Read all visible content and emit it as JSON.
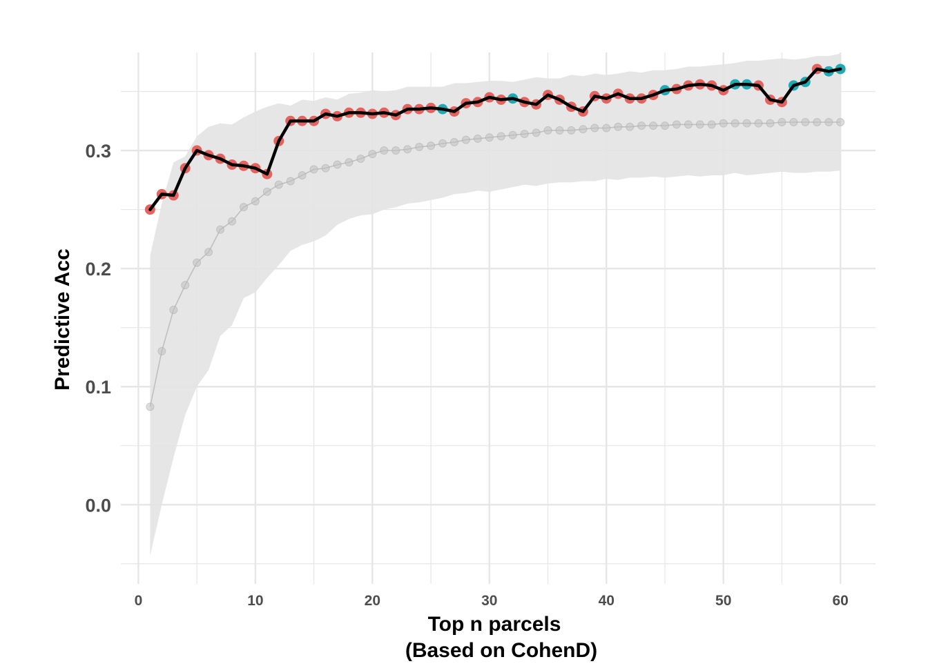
{
  "chart_data": {
    "type": "line",
    "title": "",
    "xlabel_lines": [
      "Top n parcels",
      "(Based on CohenD)"
    ],
    "ylabel": "Predictive Acc",
    "xlim": [
      -1.5,
      63
    ],
    "ylim": [
      -0.067,
      0.383
    ],
    "x_ticks": [
      0,
      10,
      20,
      30,
      40,
      50,
      60
    ],
    "y_ticks": [
      0.0,
      0.1,
      0.2,
      0.3
    ],
    "y_tick_labels": [
      "0.0",
      "0.1",
      "0.2",
      "0.3"
    ],
    "grid": true,
    "legend": "none",
    "colors": {
      "main_line": "#000000",
      "point_red": "#E5635E",
      "point_teal": "#21AAB3",
      "null_mean": "#bfbfbf",
      "ribbon": "#e3e3e3",
      "grid": "#e6e6e6",
      "tick_text": "#4d4d4d"
    },
    "x": [
      1,
      2,
      3,
      4,
      5,
      6,
      7,
      8,
      9,
      10,
      11,
      12,
      13,
      14,
      15,
      16,
      17,
      18,
      19,
      20,
      21,
      22,
      23,
      24,
      25,
      26,
      27,
      28,
      29,
      30,
      31,
      32,
      33,
      34,
      35,
      36,
      37,
      38,
      39,
      40,
      41,
      42,
      43,
      44,
      45,
      46,
      47,
      48,
      49,
      50,
      51,
      52,
      53,
      54,
      55,
      56,
      57,
      58,
      59,
      60
    ],
    "observed": [
      0.25,
      0.263,
      0.262,
      0.285,
      0.3,
      0.296,
      0.293,
      0.288,
      0.287,
      0.285,
      0.28,
      0.308,
      0.325,
      0.325,
      0.325,
      0.331,
      0.329,
      0.332,
      0.332,
      0.331,
      0.332,
      0.33,
      0.335,
      0.335,
      0.336,
      0.335,
      0.333,
      0.34,
      0.341,
      0.345,
      0.343,
      0.344,
      0.341,
      0.339,
      0.347,
      0.343,
      0.337,
      0.333,
      0.346,
      0.344,
      0.348,
      0.344,
      0.344,
      0.347,
      0.351,
      0.352,
      0.355,
      0.356,
      0.355,
      0.351,
      0.356,
      0.356,
      0.355,
      0.343,
      0.341,
      0.355,
      0.358,
      0.369,
      0.367,
      0.369
    ],
    "point_group": [
      "r",
      "r",
      "r",
      "r",
      "r",
      "r",
      "r",
      "r",
      "r",
      "r",
      "r",
      "r",
      "r",
      "r",
      "r",
      "r",
      "r",
      "r",
      "r",
      "r",
      "r",
      "r",
      "r",
      "r",
      "r",
      "t",
      "r",
      "r",
      "r",
      "r",
      "r",
      "t",
      "r",
      "r",
      "r",
      "r",
      "r",
      "r",
      "r",
      "r",
      "r",
      "r",
      "r",
      "r",
      "t",
      "r",
      "r",
      "r",
      "r",
      "r",
      "t",
      "t",
      "r",
      "r",
      "r",
      "t",
      "t",
      "r",
      "t",
      "t"
    ],
    "null_mean": [
      0.083,
      0.13,
      0.165,
      0.186,
      0.205,
      0.214,
      0.233,
      0.24,
      0.252,
      0.257,
      0.265,
      0.271,
      0.274,
      0.279,
      0.284,
      0.285,
      0.288,
      0.29,
      0.293,
      0.297,
      0.3,
      0.3,
      0.301,
      0.303,
      0.304,
      0.306,
      0.307,
      0.309,
      0.31,
      0.311,
      0.312,
      0.313,
      0.314,
      0.315,
      0.317,
      0.317,
      0.317,
      0.318,
      0.319,
      0.319,
      0.32,
      0.32,
      0.321,
      0.321,
      0.321,
      0.322,
      0.322,
      0.322,
      0.322,
      0.323,
      0.323,
      0.323,
      0.323,
      0.323,
      0.324,
      0.324,
      0.324,
      0.324,
      0.324,
      0.324
    ],
    "null_upper": [
      0.211,
      0.255,
      0.29,
      0.295,
      0.312,
      0.32,
      0.323,
      0.322,
      0.328,
      0.333,
      0.337,
      0.34,
      0.338,
      0.343,
      0.342,
      0.345,
      0.343,
      0.348,
      0.349,
      0.351,
      0.35,
      0.351,
      0.354,
      0.354,
      0.354,
      0.354,
      0.357,
      0.357,
      0.358,
      0.359,
      0.359,
      0.358,
      0.36,
      0.362,
      0.361,
      0.361,
      0.364,
      0.363,
      0.365,
      0.364,
      0.365,
      0.367,
      0.366,
      0.368,
      0.368,
      0.369,
      0.371,
      0.371,
      0.372,
      0.373,
      0.374,
      0.376,
      0.376,
      0.377,
      0.378,
      0.377,
      0.378,
      0.38,
      0.38,
      0.382
    ],
    "null_lower": [
      -0.043,
      0.0,
      0.04,
      0.076,
      0.1,
      0.114,
      0.143,
      0.152,
      0.175,
      0.18,
      0.192,
      0.203,
      0.215,
      0.22,
      0.223,
      0.228,
      0.237,
      0.242,
      0.245,
      0.246,
      0.25,
      0.252,
      0.255,
      0.256,
      0.258,
      0.26,
      0.263,
      0.264,
      0.266,
      0.265,
      0.267,
      0.269,
      0.271,
      0.27,
      0.272,
      0.273,
      0.273,
      0.274,
      0.274,
      0.276,
      0.275,
      0.277,
      0.277,
      0.278,
      0.277,
      0.278,
      0.279,
      0.278,
      0.279,
      0.279,
      0.281,
      0.279,
      0.28,
      0.281,
      0.282,
      0.281,
      0.281,
      0.282,
      0.282,
      0.283
    ]
  }
}
